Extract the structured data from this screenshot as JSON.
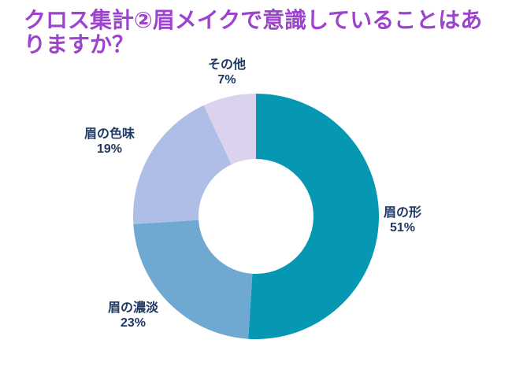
{
  "title": "クロス集計②眉メイクで意識していることはありますか？",
  "colors": {
    "background": "#FFFFFF",
    "title": "#9D43CE",
    "data_label": "#1F3864"
  },
  "chart_data": {
    "type": "pie",
    "subtype": "donut",
    "title": "クロス集計②眉メイクで意識していることはありますか？",
    "direction": "clockwise",
    "start_angle_deg": 0,
    "inner_radius_ratio": 0.47,
    "legend": "none",
    "data_labels": "outside",
    "slices": [
      {
        "label": "眉の形",
        "value": 51,
        "pct_text": "51%",
        "color": "#0697B2"
      },
      {
        "label": "眉の濃淡",
        "value": 23,
        "pct_text": "23%",
        "color": "#6FA9D2"
      },
      {
        "label": "眉の色味",
        "value": 19,
        "pct_text": "19%",
        "color": "#AEBEE6"
      },
      {
        "label": "その他",
        "value": 7,
        "pct_text": "7%",
        "color": "#DBD3EE"
      }
    ]
  }
}
